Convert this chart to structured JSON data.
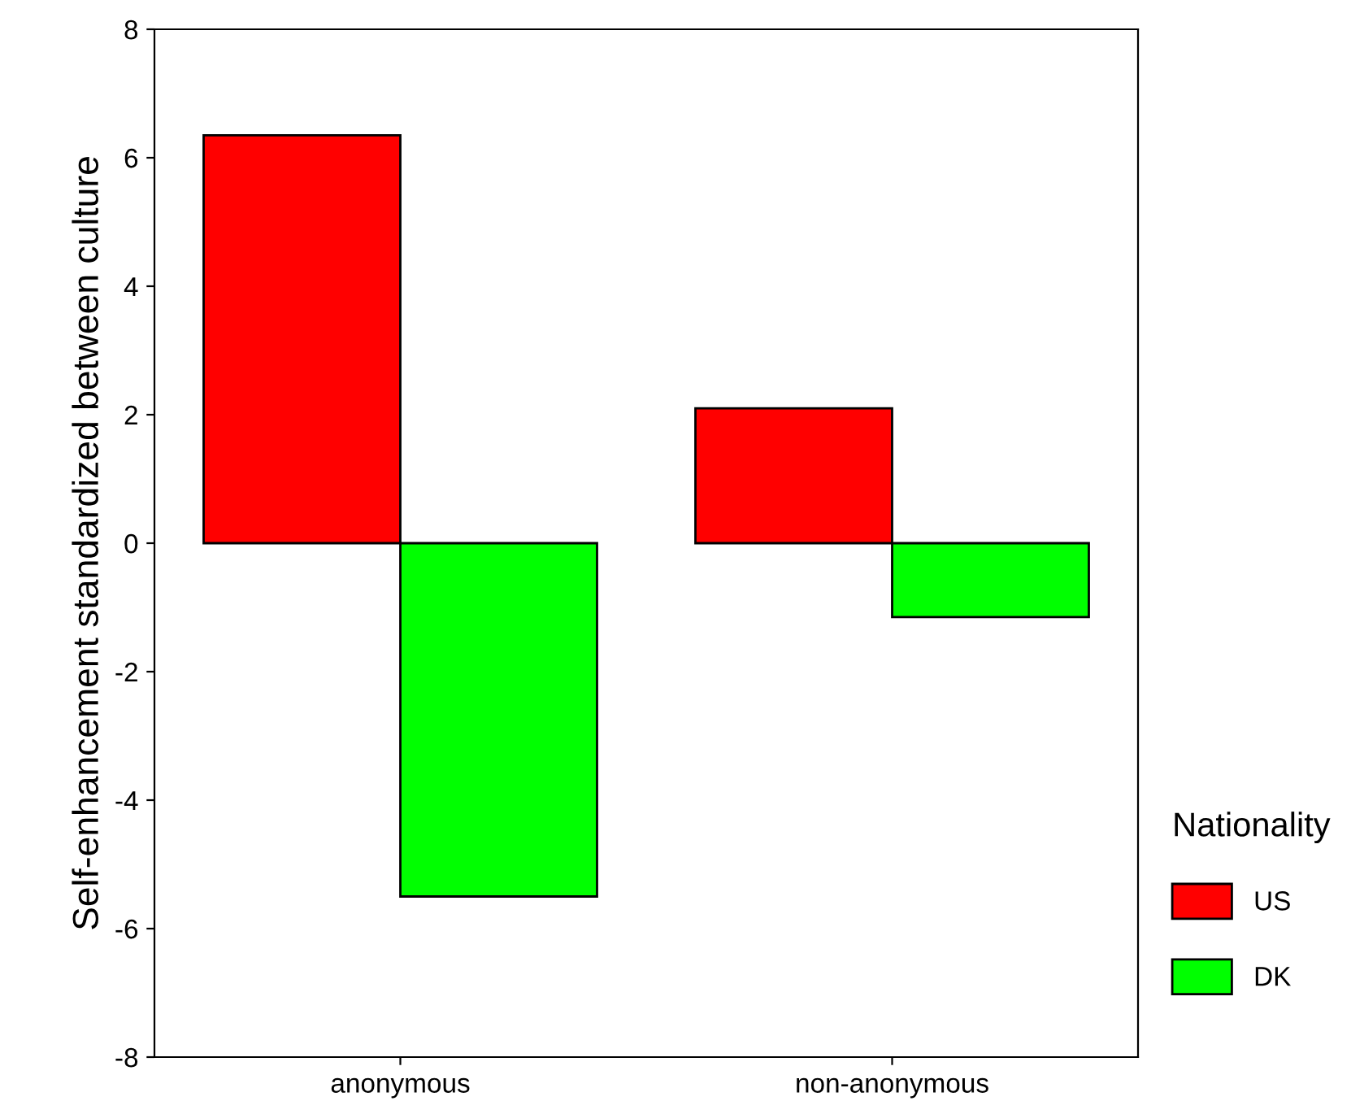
{
  "chart_data": {
    "type": "bar",
    "ylabel": "Self-enhancement standardized between culture",
    "categories": [
      "anonymous",
      "non-anonymous"
    ],
    "series": [
      {
        "name": "US",
        "color": "#ff0000",
        "values": [
          6.35,
          2.1
        ]
      },
      {
        "name": "DK",
        "color": "#00ff00",
        "values": [
          -5.5,
          -1.15
        ]
      }
    ],
    "ylim": [
      -8,
      8
    ],
    "yticks": [
      -8,
      -6,
      -4,
      -2,
      0,
      2,
      4,
      6,
      8
    ],
    "legend": "right",
    "legend_title": "Nationality",
    "grid": false
  }
}
